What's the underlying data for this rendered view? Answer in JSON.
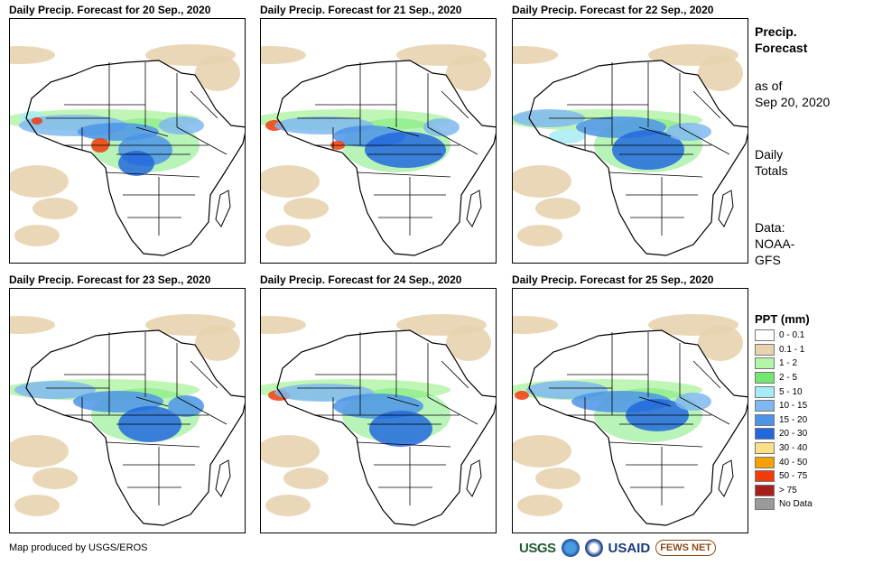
{
  "panels": [
    {
      "title": "Daily Precip. Forecast for 20  Sep., 2020"
    },
    {
      "title": "Daily Precip. Forecast for 21  Sep., 2020"
    },
    {
      "title": "Daily Precip. Forecast for 22  Sep., 2020"
    },
    {
      "title": "Daily Precip. Forecast for 23  Sep., 2020"
    },
    {
      "title": "Daily Precip. Forecast for 24  Sep., 2020"
    },
    {
      "title": "Daily Precip. Forecast for 25  Sep., 2020"
    }
  ],
  "sidebar": {
    "title_line1": "Precip.",
    "title_line2": "Forecast",
    "asof_line1": "as of",
    "asof_line2": "Sep 20, 2020",
    "totals_line1": "Daily",
    "totals_line2": "Totals",
    "data_line1": "Data:",
    "data_line2": "NOAA-",
    "data_line3": "GFS"
  },
  "legend": {
    "title": "PPT (mm)",
    "items": [
      {
        "label": "0 - 0.1",
        "color": "#ffffff"
      },
      {
        "label": "0.1 - 1",
        "color": "#e8d3b0"
      },
      {
        "label": "1 - 2",
        "color": "#b5f5a8"
      },
      {
        "label": "2 - 5",
        "color": "#72e872"
      },
      {
        "label": "5 - 10",
        "color": "#a7ecf5"
      },
      {
        "label": "10 - 15",
        "color": "#7fb8ee"
      },
      {
        "label": "15 - 20",
        "color": "#4d94e8"
      },
      {
        "label": "20 - 30",
        "color": "#2268dc"
      },
      {
        "label": "30 - 40",
        "color": "#fbe08a"
      },
      {
        "label": "40 - 50",
        "color": "#f5a200"
      },
      {
        "label": "50 - 75",
        "color": "#f23b0c"
      },
      {
        "label": "> 75",
        "color": "#a8201c"
      },
      {
        "label": "No Data",
        "color": "#9a9a9a"
      }
    ]
  },
  "credit": "Map produced by USGS/EROS",
  "logos": {
    "usgs": "USGS",
    "usaid": "USAID",
    "fews": "FEWS NET"
  }
}
